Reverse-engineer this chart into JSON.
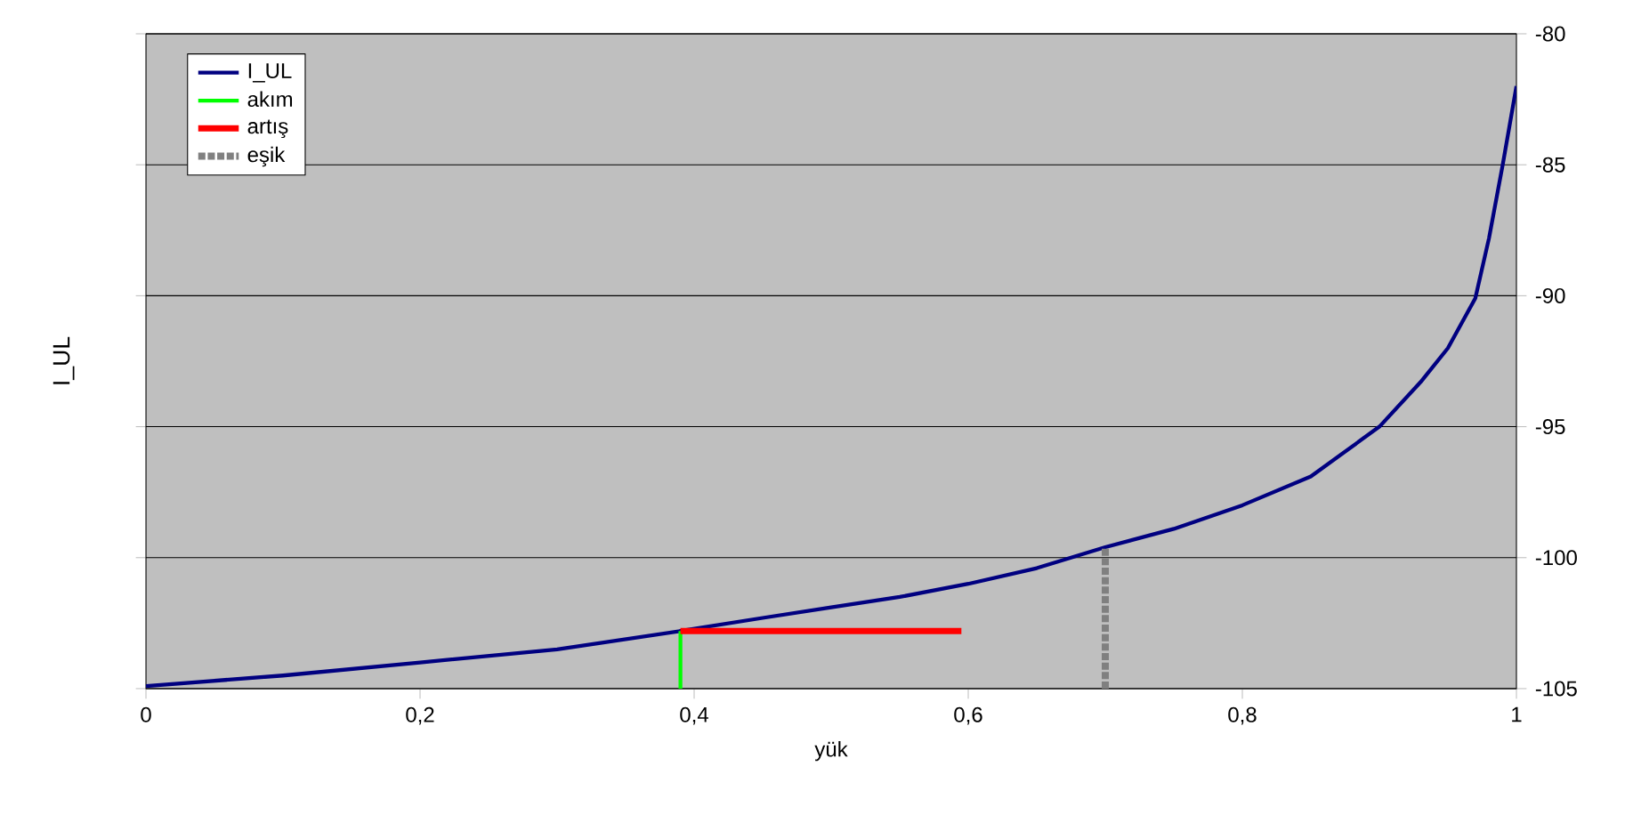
{
  "chart_data": {
    "type": "line",
    "xlabel": "yük",
    "ylabel": "I_UL",
    "xlim": [
      0,
      1
    ],
    "ylim": [
      -105,
      -80
    ],
    "xticks": [
      0,
      {
        "value": 0.2,
        "label": "0,2"
      },
      {
        "value": 0.4,
        "label": "0,4"
      },
      {
        "value": 0.6,
        "label": "0,6"
      },
      {
        "value": 0.8,
        "label": "0,8"
      },
      1
    ],
    "yticks": [
      -105,
      -100,
      -95,
      -90,
      -85,
      -80
    ],
    "grid": "y",
    "legend": "top left",
    "marker": "none",
    "series": [
      {
        "name": "I_UL",
        "color": "#000080",
        "line_style": "solid",
        "x": [
          0,
          0.1,
          0.2,
          0.3,
          0.39,
          0.45,
          0.5,
          0.55,
          0.6,
          0.65,
          0.7,
          0.75,
          0.8,
          0.85,
          0.9,
          0.93,
          0.95,
          0.97,
          0.98,
          0.99,
          0.995,
          1
        ],
        "values": [
          -104.9,
          -104.5,
          -104.0,
          -103.5,
          -102.8,
          -102.3,
          -101.9,
          -101.5,
          -101.0,
          -100.4,
          -99.6,
          -98.9,
          -98.0,
          -96.9,
          -95.0,
          -93.3,
          -92.0,
          -90.1,
          -87.8,
          -85.0,
          -83.5,
          -82.0
        ]
      },
      {
        "name": "akım",
        "color": "#00ff00",
        "line_style": "solid",
        "x": [
          0.39,
          0.39
        ],
        "values": [
          -105,
          -102.8
        ]
      },
      {
        "name": "artış",
        "color": "#ff0000",
        "line_style": "solid",
        "x": [
          0.39,
          0.595
        ],
        "values": [
          -102.8,
          -102.8
        ]
      },
      {
        "name": "eşik",
        "color": "#808080",
        "line_style": "dotted",
        "x": [
          0.7,
          0.7
        ],
        "values": [
          -105,
          -99.6
        ]
      }
    ]
  }
}
